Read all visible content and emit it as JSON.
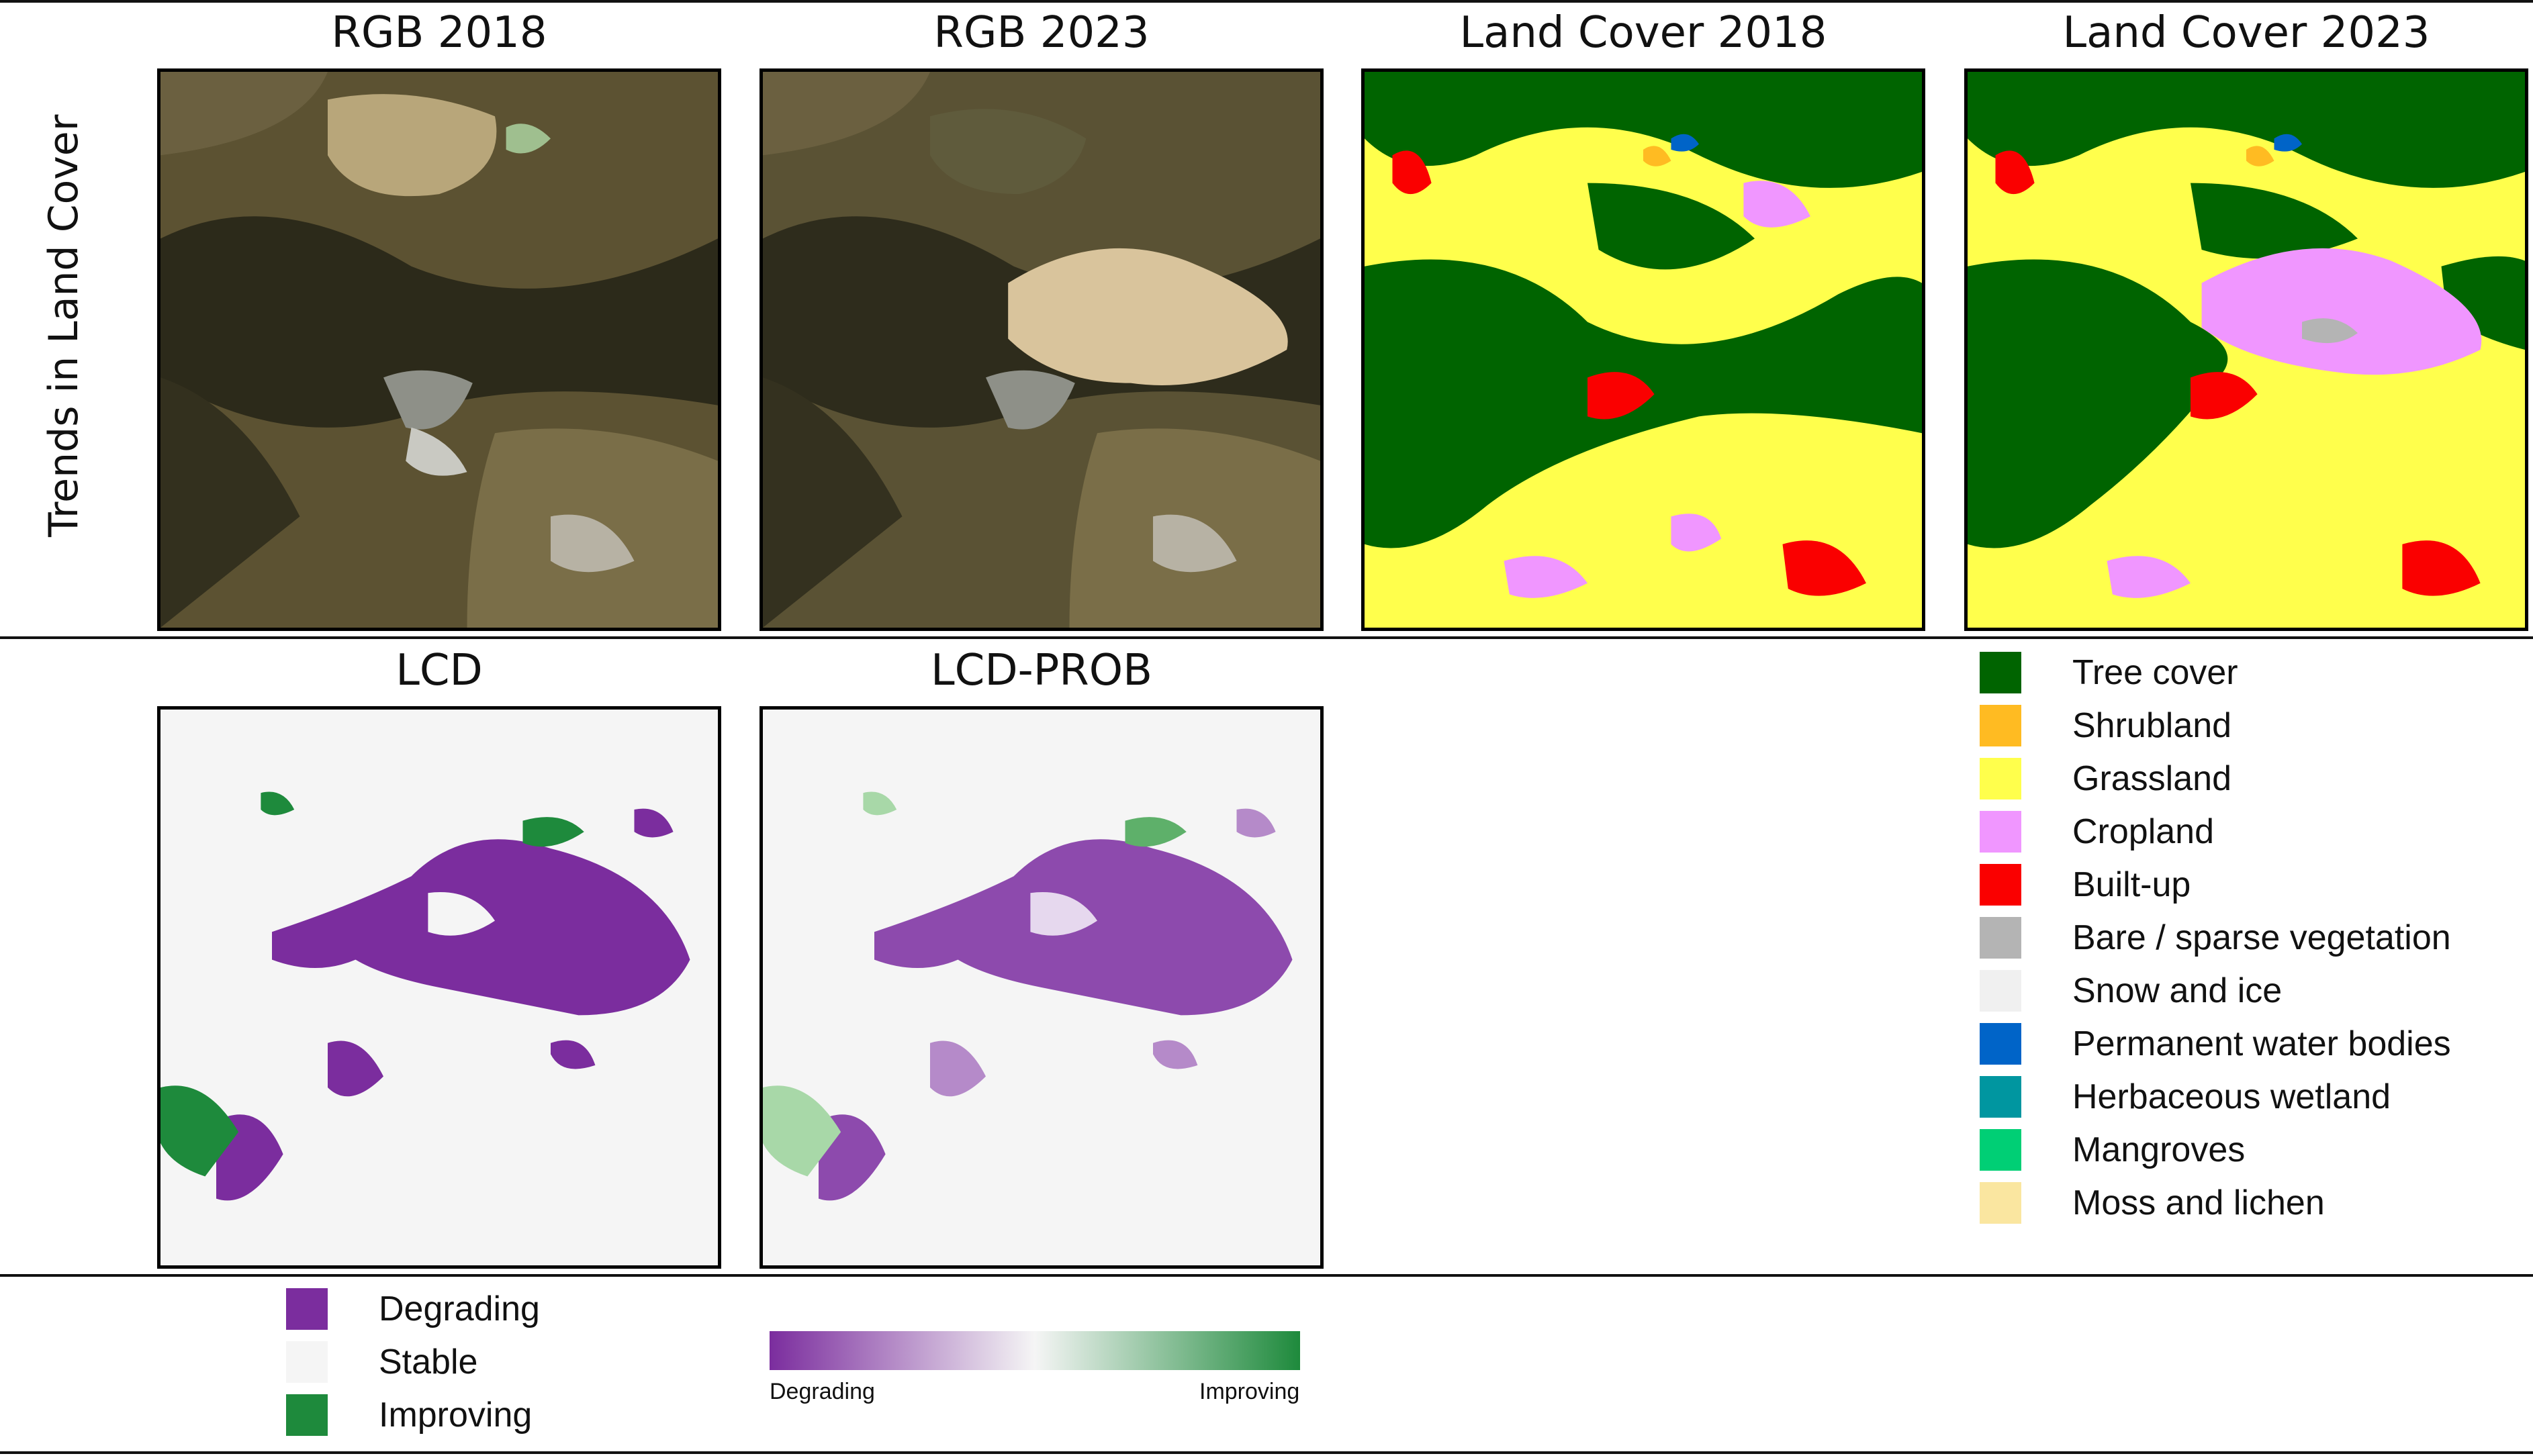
{
  "row_label": "Trends in Land Cover",
  "panels": {
    "rgb_2018": "RGB 2018",
    "rgb_2023": "RGB 2023",
    "lc_2018": "Land Cover 2018",
    "lc_2023": "Land Cover 2023",
    "lcd": "LCD",
    "lcd_prob": "LCD-PROB"
  },
  "land_cover_legend": [
    {
      "label": "Tree cover",
      "color": "#006400"
    },
    {
      "label": "Shrubland",
      "color": "#ffbb22"
    },
    {
      "label": "Grassland",
      "color": "#ffff4c"
    },
    {
      "label": "Cropland",
      "color": "#f096ff"
    },
    {
      "label": "Built-up",
      "color": "#fa0000"
    },
    {
      "label": "Bare / sparse vegetation",
      "color": "#b4b4b4"
    },
    {
      "label": "Snow and ice",
      "color": "#f0f0f0"
    },
    {
      "label": "Permanent water bodies",
      "color": "#0064c8"
    },
    {
      "label": "Herbaceous wetland",
      "color": "#0096a0"
    },
    {
      "label": "Mangroves",
      "color": "#00cf75"
    },
    {
      "label": "Moss and lichen",
      "color": "#fae6a0"
    }
  ],
  "lcd_legend": [
    {
      "label": "Degrading",
      "color": "#7b2d9e"
    },
    {
      "label": "Stable",
      "color": "#f5f5f5"
    },
    {
      "label": "Improving",
      "color": "#1e8a3c"
    }
  ],
  "prob_scale": {
    "left_label": "Degrading",
    "right_label": "Improving",
    "left_color": "#7b2d9e",
    "mid_color": "#f5f5f5",
    "right_color": "#1e8a3c"
  }
}
